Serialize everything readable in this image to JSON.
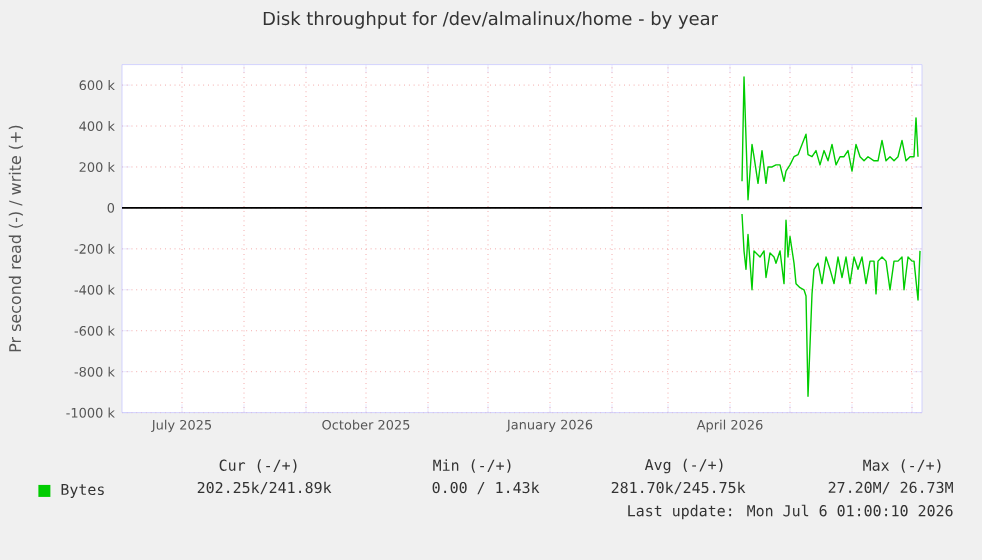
{
  "chart_data": {
    "type": "line",
    "title": "Disk throughput for /dev/almalinux/home - by year",
    "ylabel": "Pr second read (-) / write (+)",
    "xlim": [
      "2025-06-01",
      "2026-07-06"
    ],
    "xticks": [
      {
        "value": "2025-07-01",
        "label": "July 2025"
      },
      {
        "value": "2025-08-01",
        "label": null
      },
      {
        "value": "2025-09-01",
        "label": null
      },
      {
        "value": "2025-10-01",
        "label": "October 2025"
      },
      {
        "value": "2025-11-01",
        "label": null
      },
      {
        "value": "2025-12-01",
        "label": null
      },
      {
        "value": "2026-01-01",
        "label": "January 2026"
      },
      {
        "value": "2026-02-01",
        "label": null
      },
      {
        "value": "2026-03-01",
        "label": null
      },
      {
        "value": "2026-04-01",
        "label": "April 2026"
      },
      {
        "value": "2026-05-01",
        "label": null
      },
      {
        "value": "2026-06-01",
        "label": null
      },
      {
        "value": "2026-07-01",
        "label": null
      }
    ],
    "ylim": [
      -1000000,
      700000
    ],
    "yticks": [
      {
        "value": 600000,
        "label": "600 k"
      },
      {
        "value": 400000,
        "label": "400 k"
      },
      {
        "value": 200000,
        "label": "200 k"
      },
      0,
      {
        "value": -200000,
        "label": "-200 k"
      },
      {
        "value": -400000,
        "label": "-400 k"
      },
      {
        "value": -600000,
        "label": "-600 k"
      },
      {
        "value": -800000,
        "label": "-800 k"
      },
      {
        "value": -1000000,
        "label": "-1000 k"
      }
    ],
    "grid": true,
    "legend": "bottom left",
    "ref_lines": [
      {
        "axis": "y",
        "value": 0,
        "color": "#000000"
      }
    ],
    "series": [
      {
        "name": "Bytes",
        "color": "#00cc00",
        "x": [
          "2026-04-07",
          "2026-04-08",
          "2026-04-10",
          "2026-04-12",
          "2026-04-13",
          "2026-04-15",
          "2026-04-17",
          "2026-04-19",
          "2026-04-20",
          "2026-04-22",
          "2026-04-24",
          "2026-04-26",
          "2026-04-28",
          "2026-04-29",
          "2026-05-01",
          "2026-05-03",
          "2026-05-05",
          "2026-05-07",
          "2026-05-09",
          "2026-05-10",
          "2026-05-12",
          "2026-05-14",
          "2026-05-16",
          "2026-05-18",
          "2026-05-20",
          "2026-05-22",
          "2026-05-24",
          "2026-05-26",
          "2026-05-28",
          "2026-05-30",
          "2026-06-01",
          "2026-06-03",
          "2026-06-05",
          "2026-06-07",
          "2026-06-09",
          "2026-06-12",
          "2026-06-14",
          "2026-06-16",
          "2026-06-18",
          "2026-06-20",
          "2026-06-22",
          "2026-06-24",
          "2026-06-26",
          "2026-06-28",
          "2026-06-30",
          "2026-07-02",
          "2026-07-03",
          "2026-07-04"
        ],
        "values": [
          130000,
          640000,
          40000,
          310000,
          250000,
          120000,
          280000,
          120000,
          200000,
          200000,
          210000,
          210000,
          130000,
          180000,
          210000,
          250000,
          260000,
          310000,
          360000,
          260000,
          250000,
          280000,
          210000,
          280000,
          230000,
          310000,
          210000,
          250000,
          250000,
          280000,
          180000,
          310000,
          250000,
          230000,
          250000,
          230000,
          230000,
          330000,
          230000,
          250000,
          230000,
          250000,
          330000,
          230000,
          250000,
          250000,
          440000,
          250000
        ]
      },
      {
        "color": "#00cc00",
        "x": [
          "2026-04-07",
          "2026-04-08",
          "2026-04-09",
          "2026-04-10",
          "2026-04-12",
          "2026-04-13",
          "2026-04-14",
          "2026-04-16",
          "2026-04-18",
          "2026-04-19",
          "2026-04-21",
          "2026-04-23",
          "2026-04-24",
          "2026-04-26",
          "2026-04-28",
          "2026-04-29",
          "2026-04-30",
          "2026-05-01",
          "2026-05-03",
          "2026-05-04",
          "2026-05-06",
          "2026-05-08",
          "2026-05-09",
          "2026-05-10",
          "2026-05-12",
          "2026-05-13",
          "2026-05-15",
          "2026-05-17",
          "2026-05-19",
          "2026-05-21",
          "2026-05-23",
          "2026-05-25",
          "2026-05-27",
          "2026-05-29",
          "2026-05-31",
          "2026-06-02",
          "2026-06-04",
          "2026-06-06",
          "2026-06-08",
          "2026-06-10",
          "2026-06-12",
          "2026-06-13",
          "2026-06-14",
          "2026-06-16",
          "2026-06-18",
          "2026-06-20",
          "2026-06-22",
          "2026-06-24",
          "2026-06-26",
          "2026-06-27",
          "2026-06-29",
          "2026-07-01",
          "2026-07-02",
          "2026-07-04",
          "2026-07-05"
        ],
        "values": [
          -30000,
          -210000,
          -300000,
          -130000,
          -400000,
          -210000,
          -220000,
          -240000,
          -210000,
          -340000,
          -220000,
          -240000,
          -270000,
          -210000,
          -370000,
          -60000,
          -240000,
          -140000,
          -270000,
          -370000,
          -390000,
          -400000,
          -430000,
          -920000,
          -420000,
          -300000,
          -270000,
          -370000,
          -240000,
          -300000,
          -370000,
          -240000,
          -340000,
          -240000,
          -370000,
          -240000,
          -300000,
          -240000,
          -370000,
          -260000,
          -260000,
          -420000,
          -260000,
          -240000,
          -260000,
          -400000,
          -260000,
          -260000,
          -240000,
          -400000,
          -240000,
          -260000,
          -260000,
          -450000,
          -210000
        ]
      }
    ],
    "annotations": [
      "Cur (-/+)",
      "Min (-/+)",
      "Avg (-/+)",
      "Max (-/+)",
      "202.25k/241.89k",
      "0.00 /  1.43k",
      "281.70k/245.75k",
      "27.20M/ 26.73M",
      "Last update: Mon Jul  6 01:00:10 2026"
    ]
  }
}
